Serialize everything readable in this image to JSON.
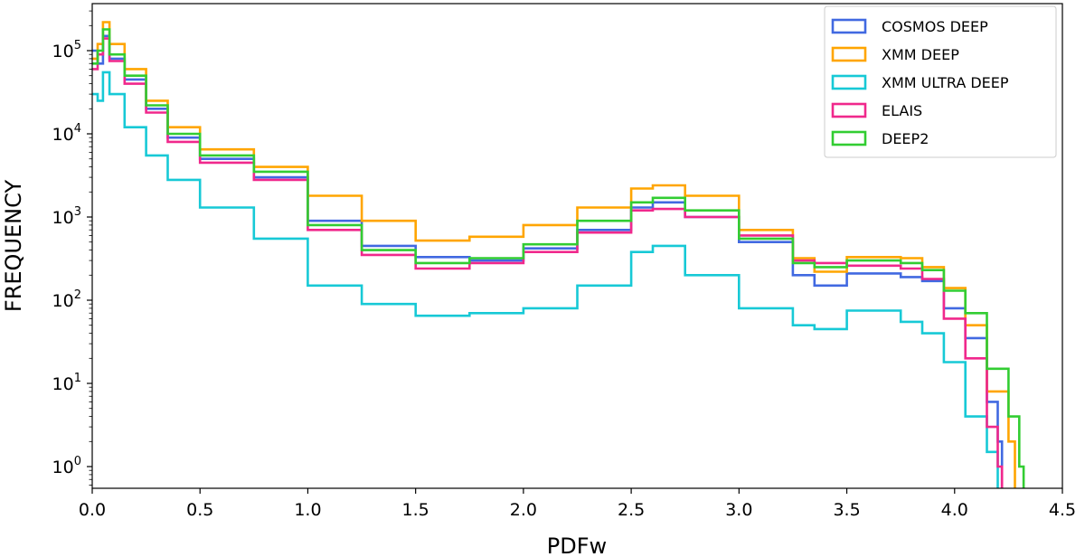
{
  "chart_data": {
    "type": "line",
    "subtype": "step-histogram",
    "title": "",
    "xlabel": "PDFw",
    "ylabel": "FREQUENCY",
    "xlim": [
      0.0,
      4.5
    ],
    "ylim": [
      0.5,
      400000
    ],
    "yscale": "log",
    "grid": false,
    "legend_position": "top-right",
    "x_ticks": [
      0.0,
      0.5,
      1.0,
      1.5,
      2.0,
      2.5,
      3.0,
      3.5,
      4.0,
      4.5
    ],
    "x_tick_labels": [
      "0.0",
      "0.5",
      "1.0",
      "1.5",
      "2.0",
      "2.5",
      "3.0",
      "3.5",
      "4.0",
      "4.5"
    ],
    "y_ticks": [
      {
        "value": 1,
        "base": "10",
        "exp": "0"
      },
      {
        "value": 10,
        "base": "10",
        "exp": "1"
      },
      {
        "value": 100,
        "base": "10",
        "exp": "2"
      },
      {
        "value": 1000,
        "base": "10",
        "exp": "3"
      },
      {
        "value": 10000,
        "base": "10",
        "exp": "4"
      },
      {
        "value": 100000,
        "base": "10",
        "exp": "5"
      }
    ],
    "series": [
      {
        "name": "COSMOS DEEP",
        "color": "#4169E1",
        "points": [
          [
            0.0,
            100000
          ],
          [
            0.025,
            70000
          ],
          [
            0.05,
            150000
          ],
          [
            0.08,
            80000
          ],
          [
            0.15,
            45000
          ],
          [
            0.25,
            20000
          ],
          [
            0.35,
            9000
          ],
          [
            0.5,
            5000
          ],
          [
            0.75,
            3000
          ],
          [
            1.0,
            900
          ],
          [
            1.25,
            450
          ],
          [
            1.5,
            330
          ],
          [
            1.75,
            300
          ],
          [
            2.0,
            420
          ],
          [
            2.25,
            700
          ],
          [
            2.5,
            1300
          ],
          [
            2.6,
            1500
          ],
          [
            2.75,
            1000
          ],
          [
            3.0,
            500
          ],
          [
            3.25,
            200
          ],
          [
            3.35,
            150
          ],
          [
            3.5,
            210
          ],
          [
            3.75,
            190
          ],
          [
            3.85,
            170
          ],
          [
            3.95,
            80
          ],
          [
            4.05,
            35
          ],
          [
            4.15,
            6
          ],
          [
            4.2,
            2
          ],
          [
            4.22,
            0.5
          ]
        ]
      },
      {
        "name": "XMM DEEP",
        "color": "#FFA500",
        "points": [
          [
            0.0,
            80000
          ],
          [
            0.025,
            120000
          ],
          [
            0.05,
            220000
          ],
          [
            0.08,
            120000
          ],
          [
            0.15,
            60000
          ],
          [
            0.25,
            25000
          ],
          [
            0.35,
            12000
          ],
          [
            0.5,
            6500
          ],
          [
            0.75,
            4000
          ],
          [
            1.0,
            1800
          ],
          [
            1.25,
            900
          ],
          [
            1.5,
            520
          ],
          [
            1.75,
            580
          ],
          [
            2.0,
            800
          ],
          [
            2.25,
            1300
          ],
          [
            2.5,
            2200
          ],
          [
            2.6,
            2400
          ],
          [
            2.75,
            1800
          ],
          [
            3.0,
            700
          ],
          [
            3.25,
            320
          ],
          [
            3.35,
            220
          ],
          [
            3.5,
            330
          ],
          [
            3.75,
            320
          ],
          [
            3.85,
            250
          ],
          [
            3.95,
            140
          ],
          [
            4.05,
            50
          ],
          [
            4.15,
            8
          ],
          [
            4.25,
            2
          ],
          [
            4.28,
            0.5
          ]
        ]
      },
      {
        "name": "XMM ULTRA DEEP",
        "color": "#17C9D6",
        "points": [
          [
            0.0,
            30000
          ],
          [
            0.025,
            25000
          ],
          [
            0.05,
            55000
          ],
          [
            0.08,
            30000
          ],
          [
            0.15,
            12000
          ],
          [
            0.25,
            5500
          ],
          [
            0.35,
            2800
          ],
          [
            0.5,
            1300
          ],
          [
            0.75,
            550
          ],
          [
            1.0,
            150
          ],
          [
            1.25,
            90
          ],
          [
            1.5,
            65
          ],
          [
            1.75,
            70
          ],
          [
            2.0,
            80
          ],
          [
            2.25,
            150
          ],
          [
            2.5,
            380
          ],
          [
            2.6,
            450
          ],
          [
            2.75,
            200
          ],
          [
            3.0,
            80
          ],
          [
            3.25,
            50
          ],
          [
            3.35,
            45
          ],
          [
            3.5,
            75
          ],
          [
            3.75,
            55
          ],
          [
            3.85,
            40
          ],
          [
            3.95,
            18
          ],
          [
            4.05,
            4
          ],
          [
            4.15,
            1.5
          ],
          [
            4.2,
            0.5
          ]
        ]
      },
      {
        "name": "ELAIS",
        "color": "#F0288C",
        "points": [
          [
            0.0,
            60000
          ],
          [
            0.025,
            90000
          ],
          [
            0.05,
            140000
          ],
          [
            0.08,
            75000
          ],
          [
            0.15,
            40000
          ],
          [
            0.25,
            18000
          ],
          [
            0.35,
            8000
          ],
          [
            0.5,
            4500
          ],
          [
            0.75,
            2800
          ],
          [
            1.0,
            700
          ],
          [
            1.25,
            350
          ],
          [
            1.5,
            240
          ],
          [
            1.75,
            280
          ],
          [
            2.0,
            380
          ],
          [
            2.25,
            650
          ],
          [
            2.5,
            1200
          ],
          [
            2.6,
            1250
          ],
          [
            2.75,
            1000
          ],
          [
            3.0,
            600
          ],
          [
            3.25,
            300
          ],
          [
            3.35,
            280
          ],
          [
            3.5,
            260
          ],
          [
            3.75,
            240
          ],
          [
            3.85,
            180
          ],
          [
            3.95,
            60
          ],
          [
            4.05,
            20
          ],
          [
            4.15,
            3
          ],
          [
            4.2,
            1
          ],
          [
            4.22,
            0.5
          ]
        ]
      },
      {
        "name": "DEEP2",
        "color": "#32CD32",
        "points": [
          [
            0.0,
            70000
          ],
          [
            0.025,
            100000
          ],
          [
            0.05,
            180000
          ],
          [
            0.08,
            90000
          ],
          [
            0.15,
            50000
          ],
          [
            0.25,
            22000
          ],
          [
            0.35,
            10000
          ],
          [
            0.5,
            5500
          ],
          [
            0.75,
            3500
          ],
          [
            1.0,
            800
          ],
          [
            1.25,
            400
          ],
          [
            1.5,
            280
          ],
          [
            1.75,
            320
          ],
          [
            2.0,
            470
          ],
          [
            2.25,
            900
          ],
          [
            2.5,
            1500
          ],
          [
            2.6,
            1700
          ],
          [
            2.75,
            1200
          ],
          [
            3.0,
            550
          ],
          [
            3.25,
            280
          ],
          [
            3.35,
            250
          ],
          [
            3.5,
            300
          ],
          [
            3.75,
            280
          ],
          [
            3.85,
            230
          ],
          [
            3.95,
            130
          ],
          [
            4.05,
            70
          ],
          [
            4.15,
            15
          ],
          [
            4.25,
            4
          ],
          [
            4.3,
            1
          ],
          [
            4.32,
            0.5
          ]
        ]
      }
    ]
  }
}
